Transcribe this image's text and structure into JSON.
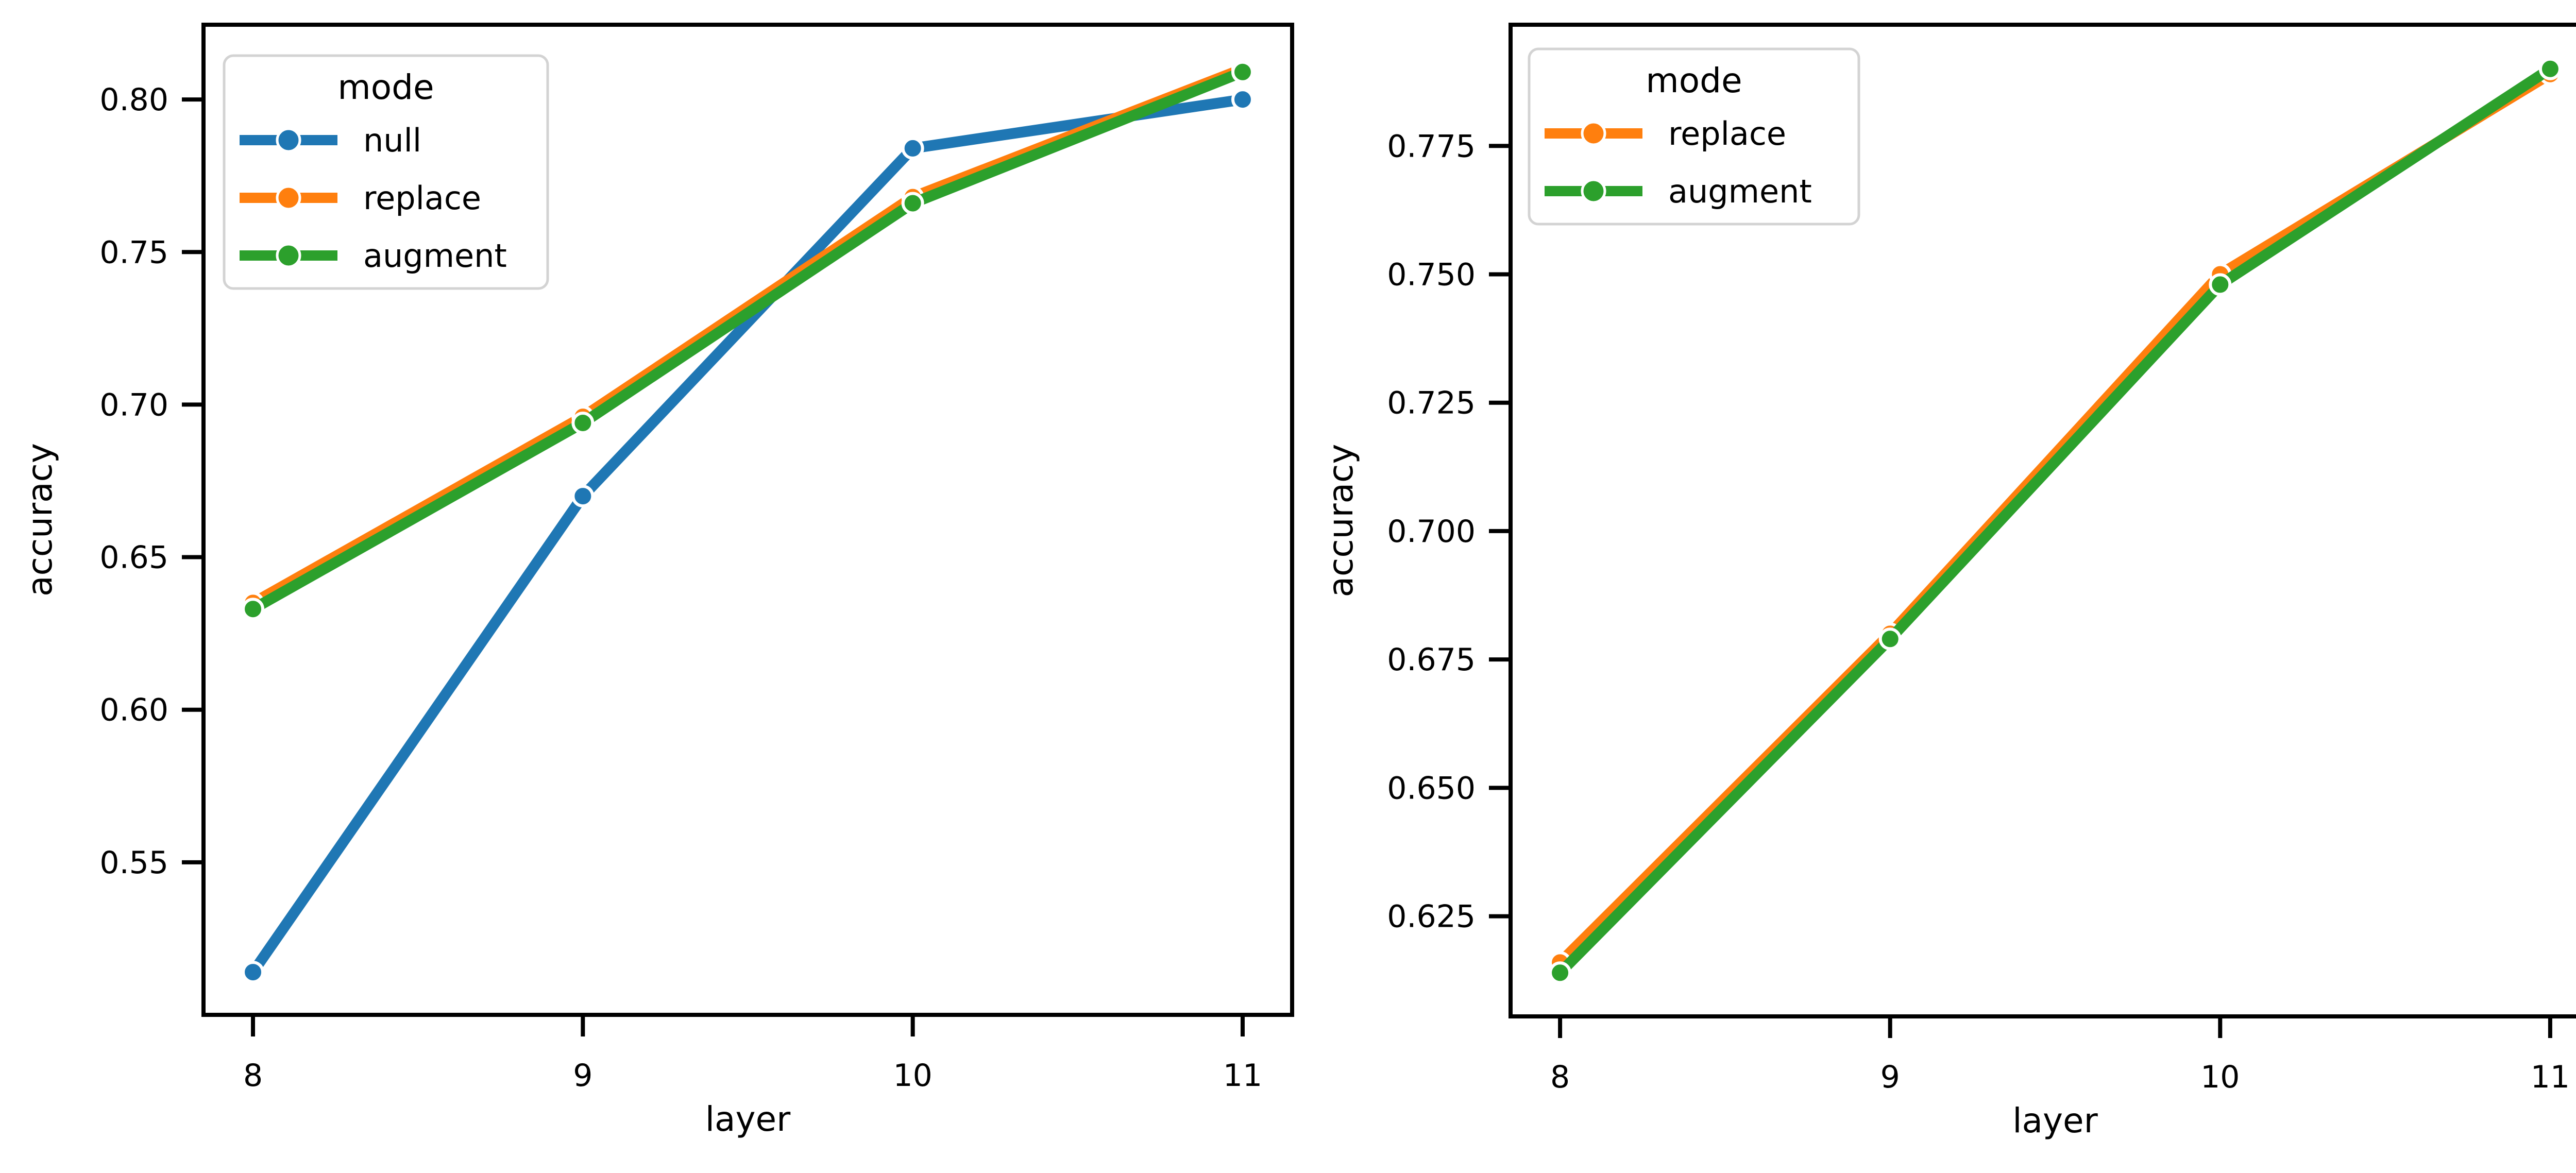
{
  "figure": {
    "background": "#ffffff",
    "text_color": "#000000",
    "legend_border_color": "#d3d3d3"
  },
  "chart_data": [
    {
      "type": "line",
      "title": "",
      "xlabel": "layer",
      "ylabel": "accuracy",
      "x": [
        8,
        9,
        10,
        11
      ],
      "xtick_labels": [
        "8",
        "9",
        "10",
        "11"
      ],
      "ytick_values": [
        0.55,
        0.6,
        0.65,
        0.7,
        0.75,
        0.8
      ],
      "ytick_labels": [
        "0.55",
        "0.60",
        "0.65",
        "0.70",
        "0.75",
        "0.80"
      ],
      "xlim": [
        7.85,
        11.15
      ],
      "ylim": [
        0.5,
        0.8245
      ],
      "grid": false,
      "legend": {
        "title": "mode",
        "position": "upper-left"
      },
      "series": [
        {
          "name": "null",
          "color": "#1f77b4",
          "values": [
            0.514,
            0.67,
            0.784,
            0.8
          ]
        },
        {
          "name": "replace",
          "color": "#ff7f0e",
          "values": [
            0.635,
            0.696,
            0.768,
            0.81
          ]
        },
        {
          "name": "augment",
          "color": "#2ca02c",
          "values": [
            0.633,
            0.694,
            0.766,
            0.809
          ]
        }
      ]
    },
    {
      "type": "line",
      "title": "",
      "xlabel": "layer",
      "ylabel": "accuracy",
      "x": [
        8,
        9,
        10,
        11
      ],
      "xtick_labels": [
        "8",
        "9",
        "10",
        "11"
      ],
      "ytick_values": [
        0.625,
        0.65,
        0.675,
        0.7,
        0.725,
        0.75,
        0.775
      ],
      "ytick_labels": [
        "0.625",
        "0.650",
        "0.675",
        "0.700",
        "0.725",
        "0.750",
        "0.775"
      ],
      "xlim": [
        7.85,
        11.15
      ],
      "ylim": [
        0.6055,
        0.7986
      ],
      "grid": false,
      "legend": {
        "title": "mode",
        "position": "upper-left"
      },
      "series": [
        {
          "name": "replace",
          "color": "#ff7f0e",
          "values": [
            0.616,
            0.68,
            0.75,
            0.789
          ]
        },
        {
          "name": "augment",
          "color": "#2ca02c",
          "values": [
            0.614,
            0.679,
            0.748,
            0.79
          ]
        }
      ]
    }
  ]
}
